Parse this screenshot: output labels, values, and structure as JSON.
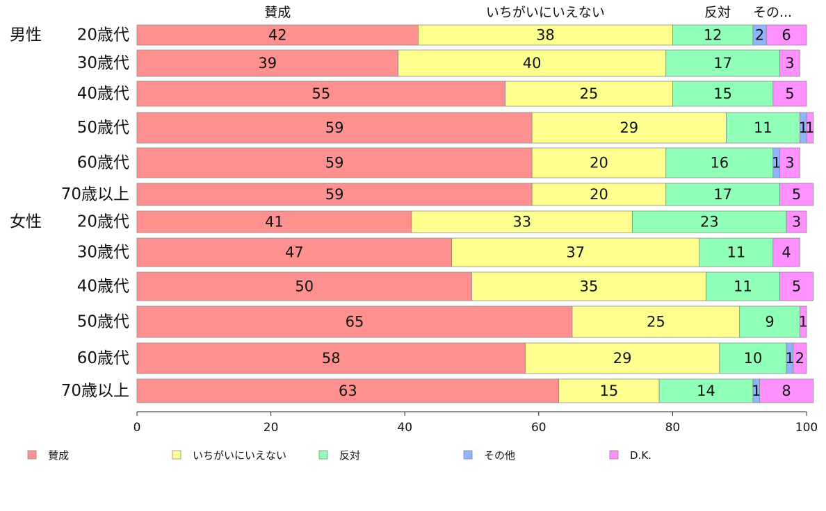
{
  "chart_data": {
    "type": "bar",
    "orientation": "horizontal",
    "stacked": true,
    "xlim": [
      0,
      100
    ],
    "xticks": [
      "0",
      "20",
      "40",
      "60",
      "80",
      "100"
    ],
    "groups": [
      {
        "label": "男性",
        "categories": [
          "20歳代",
          "30歳代",
          "40歳代",
          "50歳代",
          "60歳代",
          "70歳以上"
        ]
      },
      {
        "label": "女性",
        "categories": [
          "20歳代",
          "30歳代",
          "40歳代",
          "50歳代",
          "60歳代",
          "70歳以上"
        ]
      }
    ],
    "series": [
      {
        "name": "賛成",
        "color": "#ff9090",
        "values": [
          42,
          39,
          55,
          59,
          59,
          59,
          41,
          47,
          50,
          65,
          58,
          63
        ]
      },
      {
        "name": "いちがいにいえない",
        "color": "#ffff90",
        "values": [
          38,
          40,
          25,
          29,
          20,
          20,
          33,
          37,
          35,
          25,
          29,
          15
        ]
      },
      {
        "name": "反対",
        "color": "#90ffb8",
        "values": [
          12,
          17,
          15,
          11,
          16,
          17,
          23,
          11,
          11,
          9,
          10,
          14
        ]
      },
      {
        "name": "その他",
        "color": "#90b4ff",
        "values": [
          2,
          0,
          0,
          1,
          1,
          0,
          0,
          0,
          0,
          0,
          1,
          1
        ]
      },
      {
        "name": "D.K.",
        "color": "#ff90ff",
        "values": [
          6,
          3,
          5,
          1,
          3,
          5,
          3,
          4,
          5,
          1,
          2,
          8
        ]
      }
    ],
    "top_labels": [
      "賛成",
      "いちがいにいえない",
      "反対",
      "その..."
    ],
    "legend_position": "bottom",
    "grid": false
  }
}
